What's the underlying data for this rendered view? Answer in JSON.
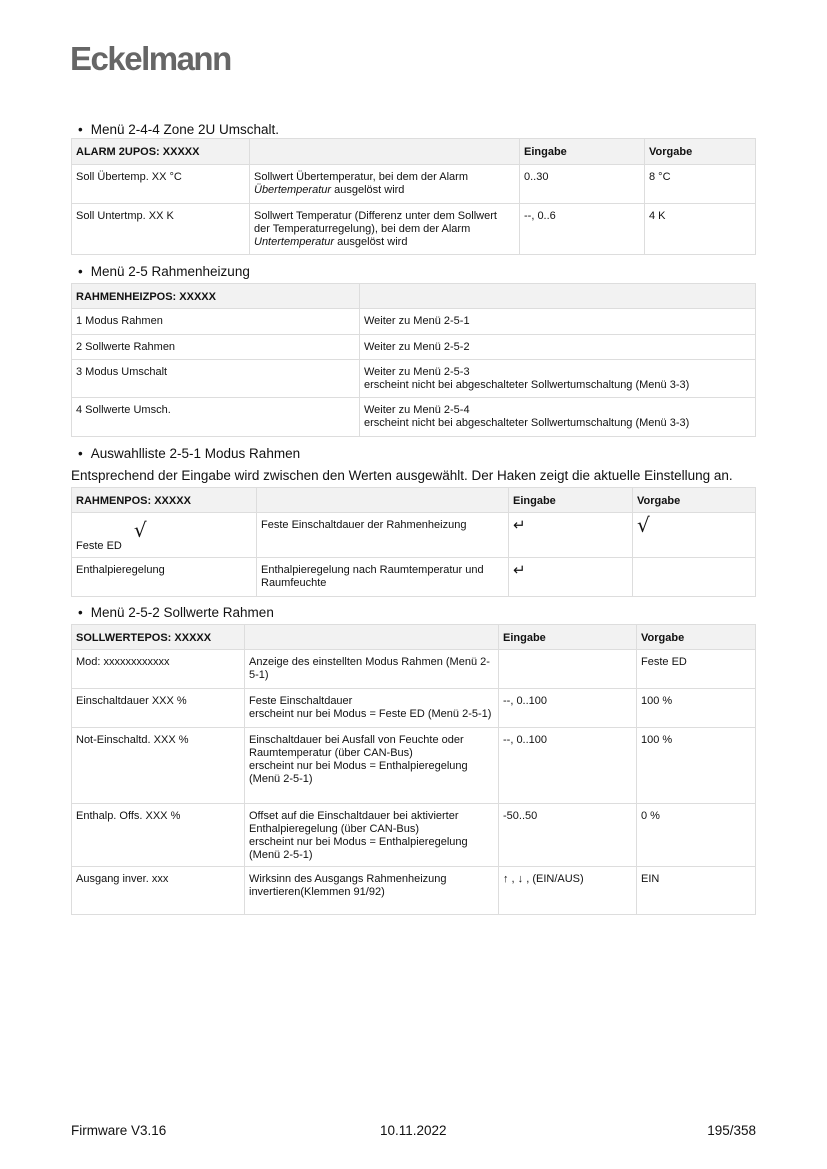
{
  "logo": "Eckelmann",
  "s1": {
    "heading": "Menü 2-4-4 Zone 2U Umschalt.",
    "header": [
      "ALARM 2UPOS: XXXXX",
      "",
      "Eingabe",
      "Vorgabe"
    ],
    "rows": [
      [
        "Soll Übertemp. XX °C",
        [
          "Sollwert Übertemperatur, bei dem der Alarm",
          "*Übertemperatur* ausgelöst wird"
        ],
        "0..30",
        "8 °C"
      ],
      [
        "Soll Untertmp. XX K",
        [
          "Sollwert Temperatur (Differenz unter dem Sollwert der Temperaturregelung), bei dem der Alarm",
          "*Untertemperatur* ausgelöst wird"
        ],
        "--, 0..6",
        "4 K"
      ]
    ]
  },
  "s2": {
    "heading": "Menü 2-5 Rahmenheizung",
    "header": [
      "RAHMENHEIZPOS: XXXXX",
      ""
    ],
    "rows": [
      [
        "1 Modus Rahmen",
        [
          "Weiter zu Menü 2-5-1"
        ]
      ],
      [
        "2 Sollwerte Rahmen",
        [
          "Weiter zu Menü 2-5-2"
        ]
      ],
      [
        "3 Modus Umschalt",
        [
          "Weiter zu Menü 2-5-3",
          "erscheint nicht bei abgeschalteter Sollwertumschaltung (Menü 3-3)"
        ]
      ],
      [
        "4 Sollwerte Umsch.",
        [
          "Weiter zu Menü 2-5-4",
          "erscheint nicht bei abgeschalteter Sollwertumschaltung (Menü 3-3)"
        ]
      ]
    ]
  },
  "s3": {
    "heading": "Auswahlliste 2-5-1 Modus Rahmen",
    "intro": "Entsprechend der Eingabe wird zwischen den Werten ausgewählt. Der Haken zeigt die aktuelle Einstellung an.",
    "header": [
      "RAHMENPOS: XXXXX",
      "",
      "Eingabe",
      "Vorgabe"
    ],
    "rows": [
      [
        "Feste ED",
        [
          "Feste Einschaltdauer der Rahmenheizung"
        ],
        "↵",
        "√"
      ],
      [
        "Enthalpieregelung",
        [
          "Enthalpieregelung nach Raumtemperatur und Raumfeuchte"
        ],
        "↵",
        ""
      ]
    ],
    "check": "√"
  },
  "s4": {
    "heading": "Menü 2-5-2 Sollwerte Rahmen",
    "header": [
      "SOLLWERTEPOS: XXXXX",
      "",
      "Eingabe",
      "Vorgabe"
    ],
    "rows": [
      [
        "Mod: xxxxxxxxxxxx",
        [
          "Anzeige des einstellten Modus Rahmen (Menü 2-5-1)"
        ],
        "",
        "Feste ED"
      ],
      [
        "Einschaltdauer XXX %",
        [
          "Feste Einschaltdauer",
          "erscheint nur bei Modus = Feste ED (Menü 2-5-1)"
        ],
        "--, 0..100",
        "100 %"
      ],
      [
        "Not-Einschaltd. XXX %",
        [
          "Einschaltdauer bei Ausfall von Feuchte oder Raumtemperatur (über CAN-Bus)",
          "erscheint nur bei Modus = Enthalpieregelung (Menü 2-5-1)"
        ],
        "--, 0..100",
        "100 %"
      ],
      [
        "Enthalp. Offs. XXX %",
        [
          "Offset auf die Einschaltdauer bei aktivierter Enthalpieregelung (über CAN-Bus)",
          "erscheint nur bei Modus = Enthalpieregelung (Menü 2-5-1)"
        ],
        "-50..50",
        "0 %"
      ],
      [
        "Ausgang inver. xxx",
        [
          "Wirksinn des Ausgangs Rahmenheizung invertieren(Klemmen 91/92)"
        ],
        "↑ , ↓ , (EIN/AUS)",
        "EIN"
      ]
    ]
  },
  "footer": {
    "left": "Firmware V3.16",
    "center": "10.11.2022",
    "right": "195/358"
  }
}
